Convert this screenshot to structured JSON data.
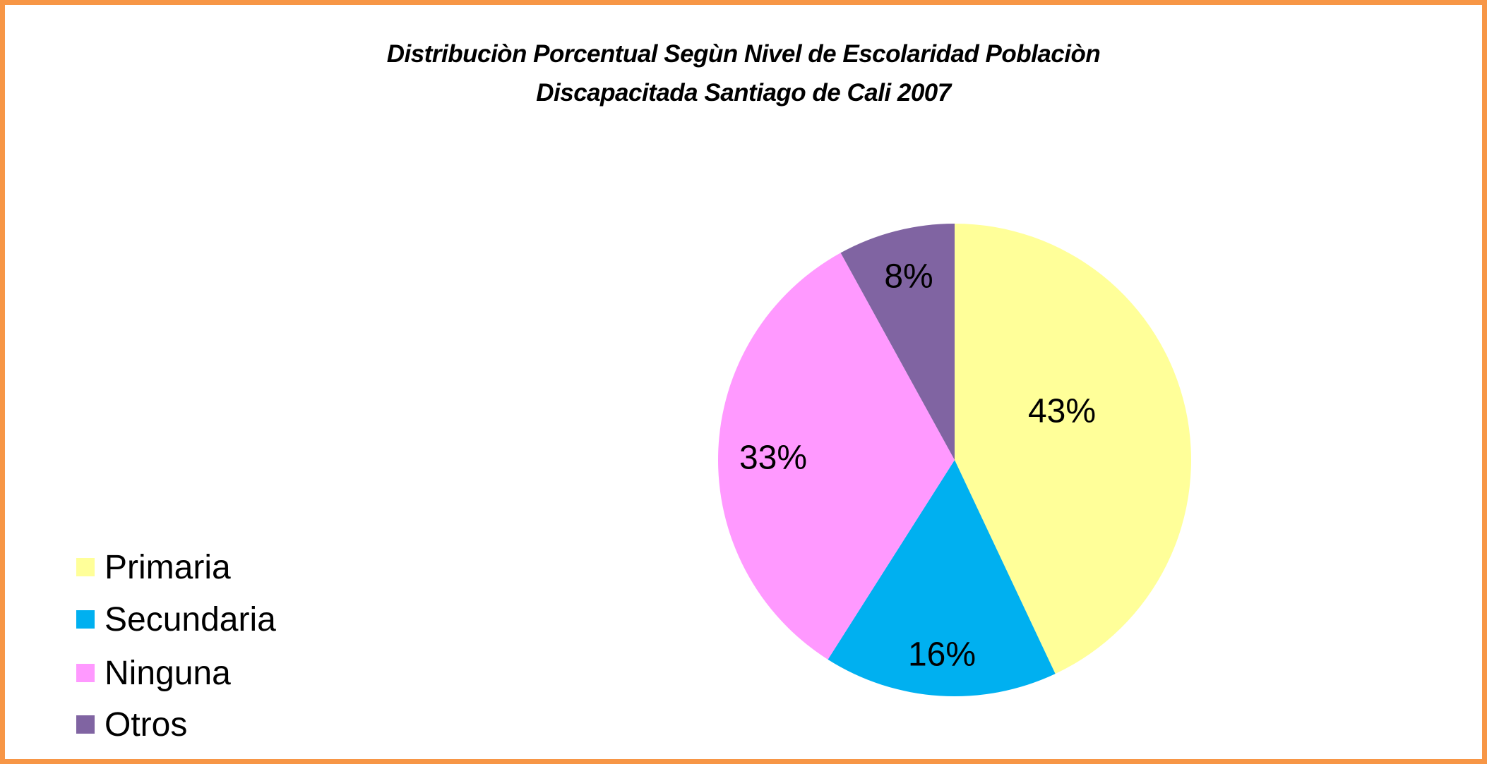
{
  "chart_data": {
    "type": "pie",
    "title_lines": [
      "Distribuciòn Porcentual Segùn Nivel de Escolaridad Poblaciòn",
      "Discapacitada Santiago de Cali 2007"
    ],
    "categories": [
      "Primaria",
      "Secundaria",
      "Ninguna",
      "Otros"
    ],
    "values": [
      43,
      16,
      33,
      8
    ],
    "data_labels": [
      "43%",
      "16%",
      "33%",
      "8%"
    ],
    "colors": [
      "#FFFF99",
      "#00B0F0",
      "#FF99FF",
      "#8064A2"
    ],
    "legend_placement": "bottom-left",
    "start_angle": "top, clockwise"
  },
  "frame": {
    "border_color": "#F79646"
  }
}
